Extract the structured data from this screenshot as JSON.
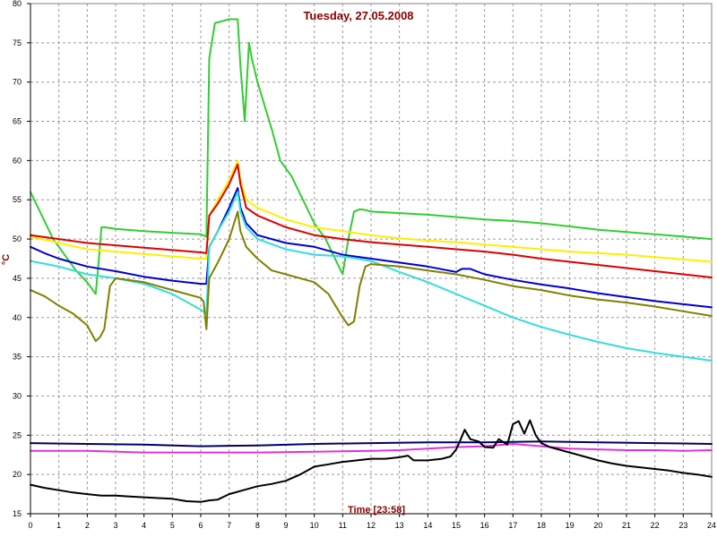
{
  "chart_data": {
    "type": "line",
    "title": "Tuesday, 27.05.2008",
    "xlabel": "Time [23:58]",
    "ylabel": "°C",
    "xlim": [
      0,
      24
    ],
    "ylim": [
      15,
      80
    ],
    "x_ticks": [
      0,
      1,
      2,
      3,
      4,
      5,
      6,
      7,
      8,
      9,
      10,
      11,
      12,
      13,
      14,
      15,
      16,
      17,
      18,
      19,
      20,
      21,
      22,
      23,
      24
    ],
    "y_ticks": [
      15,
      20,
      25,
      30,
      35,
      40,
      45,
      50,
      55,
      60,
      65,
      70,
      75,
      80
    ],
    "grid": true,
    "legend": "none",
    "colors": {
      "background": "#ffffff",
      "grid": "#9a9a9a",
      "title": "#8b0000",
      "axis": "#000000"
    },
    "series": [
      {
        "color": "#33cc33",
        "x": [
          0,
          0.4,
          0.8,
          1.2,
          1.6,
          2.0,
          2.3,
          2.4,
          2.5,
          2.6,
          3,
          4,
          5,
          6,
          6.2,
          6.3,
          6.5,
          7.0,
          7.3,
          7.4,
          7.55,
          7.7,
          7.8,
          8.0,
          8.5,
          8.8,
          9.2,
          9.6,
          10,
          10.4,
          10.8,
          11.0,
          11.2,
          11.4,
          11.6,
          11.8,
          12,
          13,
          14,
          15,
          16,
          17,
          18,
          19,
          20,
          21,
          22,
          23,
          24
        ],
        "y": [
          56,
          53,
          50,
          48,
          46,
          44.5,
          43,
          47,
          51.5,
          51.5,
          51.3,
          51,
          50.8,
          50.6,
          50.3,
          73,
          77.5,
          78,
          78,
          72,
          65,
          75,
          73,
          70,
          64,
          60,
          58,
          55,
          52,
          50,
          47,
          45.5,
          50,
          53.5,
          53.8,
          53.7,
          53.5,
          53.3,
          53.1,
          52.8,
          52.5,
          52.3,
          52,
          51.6,
          51.2,
          50.9,
          50.6,
          50.3,
          50
        ]
      },
      {
        "color": "#ffee00",
        "x": [
          0,
          1,
          2,
          3,
          4,
          5,
          6,
          6.2,
          6.3,
          6.6,
          7.0,
          7.3,
          7.4,
          7.6,
          8,
          9,
          10,
          11,
          12,
          13,
          14,
          15,
          16,
          17,
          18,
          19,
          20,
          21,
          22,
          23,
          24
        ],
        "y": [
          50.3,
          49.5,
          48.7,
          48.4,
          48.1,
          47.8,
          47.5,
          47.5,
          53,
          55,
          57.5,
          60,
          57.5,
          55,
          54,
          52.5,
          51.5,
          51,
          50.5,
          50.1,
          49.8,
          49.6,
          49.3,
          49,
          48.7,
          48.4,
          48.2,
          48,
          47.7,
          47.4,
          47.1
        ]
      },
      {
        "color": "#dd0000",
        "x": [
          0,
          1,
          2,
          3,
          4,
          5,
          6,
          6.2,
          6.3,
          6.6,
          7.0,
          7.3,
          7.4,
          7.6,
          8,
          9,
          10,
          11,
          12,
          13,
          14,
          15,
          16,
          17,
          18,
          19,
          20,
          21,
          22,
          23,
          24
        ],
        "y": [
          50.5,
          50,
          49.5,
          49.2,
          48.9,
          48.6,
          48.3,
          48.2,
          53,
          54.5,
          57,
          59.5,
          57,
          54,
          53,
          51.5,
          50.5,
          50,
          49.6,
          49.3,
          49,
          48.7,
          48.4,
          48,
          47.5,
          47.1,
          46.7,
          46.3,
          45.9,
          45.5,
          45.1
        ]
      },
      {
        "color": "#0000cc",
        "x": [
          0,
          0.5,
          1,
          2,
          3,
          4,
          5,
          6,
          6.2,
          6.3,
          6.6,
          7.0,
          7.3,
          7.4,
          7.6,
          8,
          9,
          10,
          11,
          12,
          13,
          14,
          15,
          15.2,
          15.5,
          16,
          17,
          18,
          19,
          20,
          21,
          22,
          23,
          24
        ],
        "y": [
          49,
          48.2,
          47.5,
          46.5,
          45.9,
          45.2,
          44.7,
          44.3,
          44.3,
          49,
          51,
          54,
          56.5,
          54,
          52,
          50.5,
          49.5,
          49,
          48,
          47.5,
          47,
          46.5,
          45.8,
          46.2,
          46.2,
          45.5,
          44.8,
          44.2,
          43.7,
          43.1,
          42.6,
          42.1,
          41.7,
          41.3
        ]
      },
      {
        "color": "#33dddd",
        "x": [
          0,
          1,
          2,
          3,
          4,
          5,
          5.5,
          6,
          6.2,
          6.3,
          6.6,
          7.0,
          7.3,
          7.4,
          7.6,
          8,
          9,
          10,
          11,
          12,
          13,
          14,
          15,
          16,
          17,
          18,
          19,
          20,
          21,
          22,
          23,
          24
        ],
        "y": [
          47.2,
          46.5,
          45.5,
          45,
          44.3,
          43,
          42,
          41,
          40.5,
          49,
          51,
          53.5,
          56,
          53.5,
          51.5,
          50,
          48.7,
          48,
          47.8,
          47.2,
          45.8,
          44.5,
          43,
          41.5,
          40,
          38.8,
          37.8,
          36.9,
          36.1,
          35.5,
          35,
          34.5
        ]
      },
      {
        "color": "#808000",
        "x": [
          0,
          0.5,
          1,
          1.5,
          2,
          2.3,
          2.45,
          2.6,
          2.8,
          3,
          4,
          5,
          6,
          6.1,
          6.2,
          6.3,
          6.6,
          7.0,
          7.3,
          7.4,
          7.6,
          8,
          8.5,
          9,
          10,
          10.5,
          11,
          11.2,
          11.4,
          11.6,
          11.8,
          12,
          13,
          14,
          15,
          16,
          17,
          18,
          19,
          20,
          21,
          22,
          23,
          24
        ],
        "y": [
          43.5,
          42.7,
          41.5,
          40.5,
          39,
          37,
          37.5,
          38.5,
          44,
          45,
          44.5,
          43.5,
          42.5,
          42,
          38.5,
          45,
          47,
          50,
          53.5,
          51,
          49,
          47.5,
          46,
          45.5,
          44.5,
          43,
          40,
          39,
          39.5,
          44,
          46.5,
          46.8,
          46.5,
          46,
          45.5,
          44.8,
          44,
          43.5,
          42.8,
          42.3,
          41.9,
          41.4,
          40.8,
          40.2
        ]
      },
      {
        "color": "#000066",
        "x": [
          0,
          2,
          4,
          6,
          8,
          10,
          12,
          14,
          16,
          18,
          20,
          22,
          24
        ],
        "y": [
          24,
          23.9,
          23.8,
          23.6,
          23.7,
          23.9,
          24,
          24.1,
          24.1,
          24.2,
          24.1,
          24,
          23.9
        ]
      },
      {
        "color": "#dd33dd",
        "x": [
          0,
          2,
          4,
          6,
          8,
          10,
          12,
          13,
          14,
          15,
          16,
          17,
          18,
          19,
          20,
          21,
          22,
          23,
          24
        ],
        "y": [
          23,
          23,
          22.8,
          22.8,
          22.8,
          22.9,
          23,
          23.1,
          23.3,
          23.5,
          23.6,
          23.9,
          23.6,
          23.3,
          23.2,
          23.1,
          23.1,
          23,
          23.1
        ]
      },
      {
        "color": "#000000",
        "x": [
          0,
          0.5,
          1,
          1.5,
          2,
          2.5,
          3,
          3.5,
          4,
          4.5,
          5,
          5.5,
          6,
          6.3,
          6.6,
          7,
          7.5,
          8,
          8.5,
          9,
          9.5,
          10,
          10.5,
          11,
          11.5,
          12,
          12.5,
          13,
          13.3,
          13.5,
          14,
          14.5,
          14.8,
          15,
          15.1,
          15.3,
          15.5,
          15.8,
          16,
          16.3,
          16.5,
          16.8,
          17,
          17.2,
          17.4,
          17.6,
          17.8,
          18,
          18.3,
          18.6,
          19,
          19.5,
          20,
          20.5,
          21,
          21.5,
          22,
          22.5,
          23,
          23.5,
          24
        ],
        "y": [
          18.7,
          18.3,
          18,
          17.7,
          17.5,
          17.3,
          17.3,
          17.2,
          17.1,
          17,
          16.9,
          16.6,
          16.5,
          16.7,
          16.8,
          17.5,
          18,
          18.5,
          18.8,
          19.2,
          20,
          21,
          21.3,
          21.6,
          21.8,
          22,
          22,
          22.2,
          22.4,
          21.8,
          21.8,
          22,
          22.3,
          23.2,
          24,
          25.7,
          24.5,
          24.2,
          23.5,
          23.4,
          24.5,
          23.8,
          26.4,
          26.8,
          25.2,
          26.9,
          25,
          24,
          23.5,
          23.2,
          22.8,
          22.3,
          21.8,
          21.4,
          21.1,
          20.9,
          20.7,
          20.5,
          20.2,
          20,
          19.7
        ]
      }
    ]
  }
}
